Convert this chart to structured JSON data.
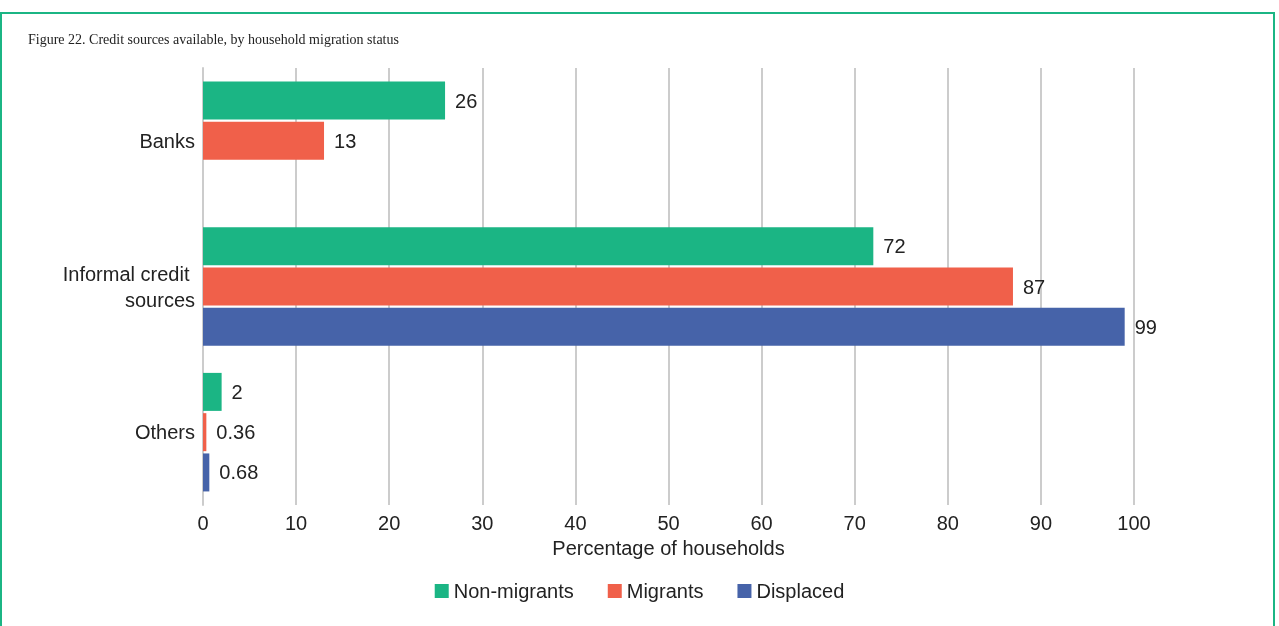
{
  "chart_data": {
    "type": "bar",
    "orientation": "horizontal",
    "title": "Figure 22. Credit sources available, by household migration status",
    "xlabel": "Percentage of households",
    "categories": [
      "Banks",
      "Informal credit sources",
      "Others"
    ],
    "series": [
      {
        "name": "Non-migrants",
        "color": "#1bb584",
        "values": [
          26,
          72,
          2
        ]
      },
      {
        "name": "Migrants",
        "color": "#f0604a",
        "values": [
          13,
          87,
          0.36
        ]
      },
      {
        "name": "Displaced",
        "color": "#4663a9",
        "values": [
          null,
          99,
          0.68
        ]
      }
    ],
    "xlim": [
      0,
      100
    ],
    "xticks": [
      0,
      10,
      20,
      30,
      40,
      50,
      60,
      70,
      80,
      90,
      100
    ],
    "grid": "x",
    "legend": "bottom",
    "data_labels": true
  }
}
